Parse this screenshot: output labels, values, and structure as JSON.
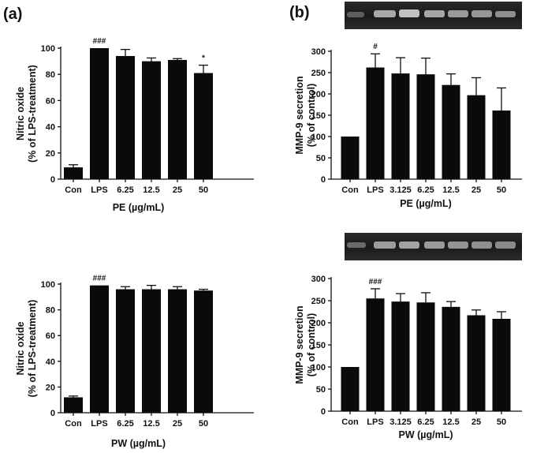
{
  "panels": {
    "a": "(a)",
    "b": "(b)"
  },
  "colors": {
    "bar": "#0a0a0a",
    "axis": "#111111"
  },
  "chart_data": [
    {
      "id": "a-top",
      "type": "bar",
      "categories": [
        "Con",
        "LPS",
        "6.25",
        "12.5",
        "25",
        "50"
      ],
      "values": [
        9,
        100,
        94,
        90,
        91,
        81
      ],
      "errors": [
        2,
        0,
        5,
        2.5,
        1,
        6
      ],
      "annotations": [
        "",
        "###",
        "",
        "",
        "",
        "*"
      ],
      "xlabel": "PE (µg/mL)",
      "ylabel": [
        "Nitric oxide",
        "(% of LPS-treatment)"
      ],
      "ylim": [
        0,
        100
      ],
      "yticks": [
        0,
        20,
        40,
        60,
        80,
        100
      ]
    },
    {
      "id": "b-top",
      "type": "bar",
      "categories": [
        "Con",
        "LPS",
        "3.125",
        "6.25",
        "12.5",
        "25",
        "50"
      ],
      "values": [
        100,
        262,
        248,
        246,
        221,
        197,
        161
      ],
      "errors": [
        0,
        32,
        37,
        38,
        26,
        41,
        53
      ],
      "annotations": [
        "",
        "#",
        "",
        "",
        "",
        "",
        ""
      ],
      "xlabel": "PE (µg/mL)",
      "ylabel": [
        "MMP-9 secretion",
        "(% of control)"
      ],
      "ylim": [
        0,
        300
      ],
      "yticks": [
        0,
        50,
        100,
        150,
        200,
        250,
        300
      ]
    },
    {
      "id": "a-bottom",
      "type": "bar",
      "categories": [
        "Con",
        "LPS",
        "6.25",
        "12.5",
        "25",
        "50"
      ],
      "values": [
        12,
        99,
        96,
        96,
        96,
        95
      ],
      "errors": [
        1,
        0,
        2,
        3,
        2,
        1
      ],
      "annotations": [
        "",
        "###",
        "",
        "",
        "",
        ""
      ],
      "xlabel": "PW (µg/mL)",
      "ylabel": [
        "Nitric oxide",
        "(% of LPS-treatment)"
      ],
      "ylim": [
        0,
        100
      ],
      "yticks": [
        0,
        20,
        40,
        60,
        80,
        100
      ]
    },
    {
      "id": "b-bottom",
      "type": "bar",
      "categories": [
        "Con",
        "LPS",
        "3.125",
        "6.25",
        "12.5",
        "25",
        "50"
      ],
      "values": [
        100,
        255,
        248,
        246,
        236,
        217,
        209
      ],
      "errors": [
        0,
        22,
        18,
        22,
        12,
        12,
        16
      ],
      "annotations": [
        "",
        "###",
        "",
        "",
        "",
        "",
        ""
      ],
      "xlabel": "PW (µg/mL)",
      "ylabel": [
        "MMP-9 secretion",
        "(% of control)"
      ],
      "ylim": [
        0,
        300
      ],
      "yticks": [
        0,
        50,
        100,
        150,
        200,
        250,
        300
      ]
    }
  ]
}
